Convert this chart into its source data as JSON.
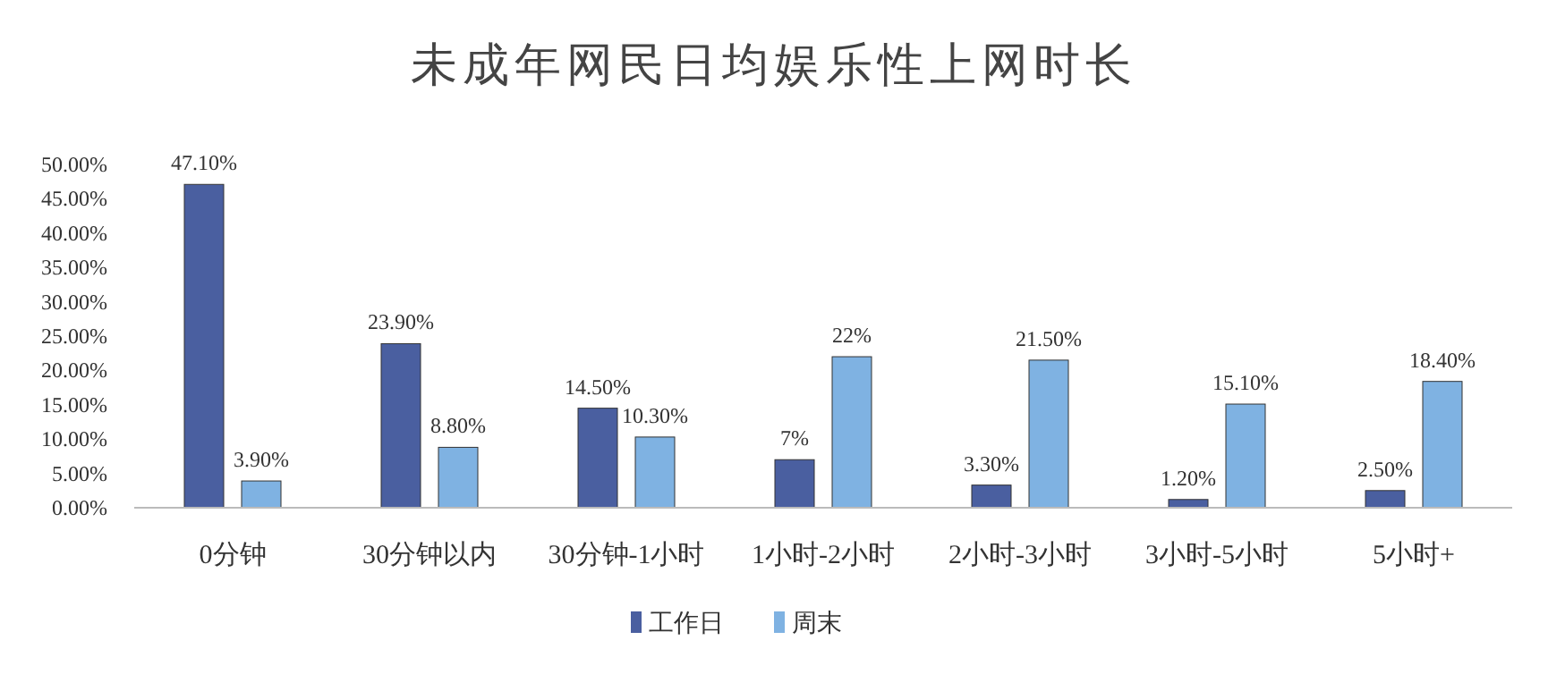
{
  "chart_data": {
    "type": "bar",
    "title": "未成年网民日均娱乐性上网时长",
    "categories": [
      "0分钟",
      "30分钟以内",
      "30分钟-1小时",
      "1小时-2小时",
      "2小时-3小时",
      "3小时-5小时",
      "5小时+"
    ],
    "series": [
      {
        "name": "工作日",
        "color": "#4a5fa0",
        "values": [
          47.1,
          23.9,
          14.5,
          7,
          3.3,
          1.2,
          2.5
        ],
        "value_labels": [
          "47.10%",
          "23.90%",
          "14.50%",
          "7%",
          "3.30%",
          "1.20%",
          "2.50%"
        ]
      },
      {
        "name": "周末",
        "color": "#7fb2e2",
        "values": [
          3.9,
          8.8,
          10.3,
          22,
          21.5,
          15.1,
          18.4
        ],
        "value_labels": [
          "3.90%",
          "8.80%",
          "10.30%",
          "22%",
          "21.50%",
          "15.10%",
          "18.40%"
        ]
      }
    ],
    "ylim": [
      0,
      50
    ],
    "yticks": [
      {
        "value": 0,
        "label": "0.00%"
      },
      {
        "value": 5,
        "label": "5.00%"
      },
      {
        "value": 10,
        "label": "10.00%"
      },
      {
        "value": 15,
        "label": "15.00%"
      },
      {
        "value": 20,
        "label": "20.00%"
      },
      {
        "value": 25,
        "label": "25.00%"
      },
      {
        "value": 30,
        "label": "30.00%"
      },
      {
        "value": 35,
        "label": "35.00%"
      },
      {
        "value": 40,
        "label": "40.00%"
      },
      {
        "value": 45,
        "label": "45.00%"
      },
      {
        "value": 50,
        "label": "50.00%"
      }
    ],
    "grid": false,
    "legend": "bottom"
  }
}
